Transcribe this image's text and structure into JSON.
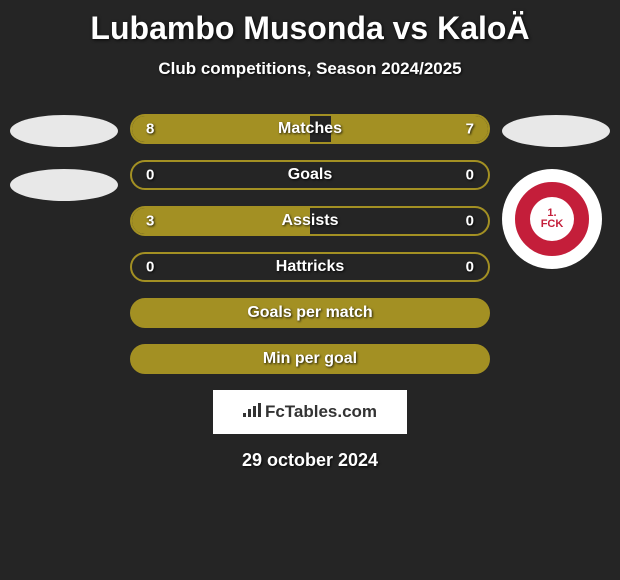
{
  "title": "Lubambo Musonda vs KaloÄ",
  "subtitle": "Club competitions, Season 2024/2025",
  "bars": [
    {
      "label": "Matches",
      "left_val": 8,
      "right_val": 7,
      "left_pct": 50,
      "right_pct": 44
    },
    {
      "label": "Goals",
      "left_val": 0,
      "right_val": 0,
      "left_pct": 0,
      "right_pct": 0
    },
    {
      "label": "Assists",
      "left_val": 3,
      "right_val": 0,
      "left_pct": 50,
      "right_pct": 0
    },
    {
      "label": "Hattricks",
      "left_val": 0,
      "right_val": 0,
      "left_pct": 0,
      "right_pct": 0
    }
  ],
  "full_bars": [
    {
      "label": "Goals per match"
    },
    {
      "label": "Min per goal"
    }
  ],
  "badge": {
    "top": "1.",
    "bottom": "FCK"
  },
  "footer": "FcTables.com",
  "date": "29 october 2024",
  "colors": {
    "bg": "#252525",
    "bar": "#a39023",
    "badge_red": "#c41e3a"
  }
}
